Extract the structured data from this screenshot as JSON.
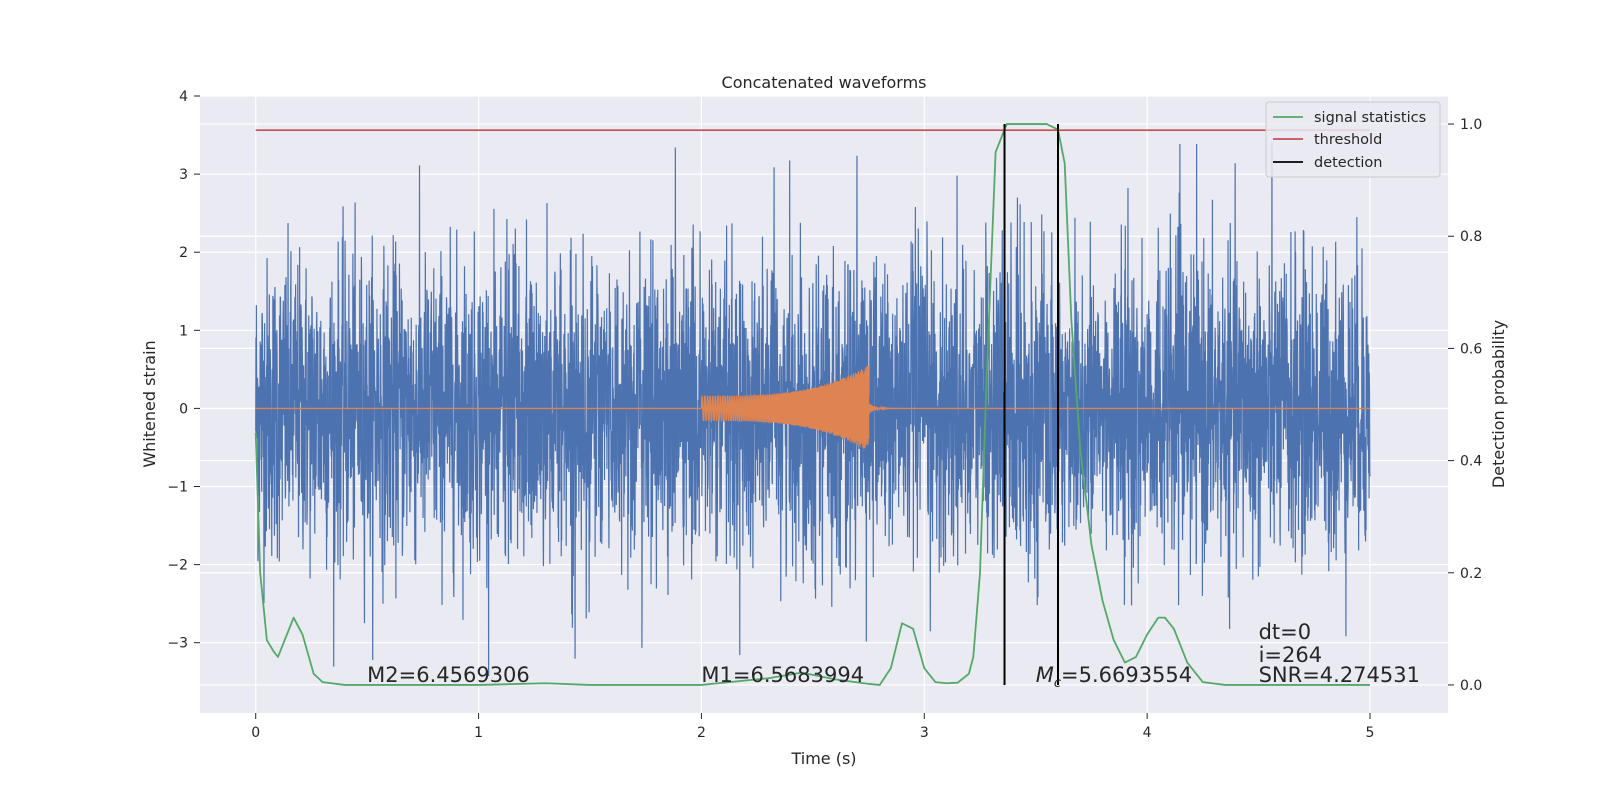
{
  "chart_data": {
    "type": "line",
    "title": "Concatenated waveforms",
    "xlabel": "Time (s)",
    "ylabel": "Whitened strain",
    "ylabel_right": "Detection probability",
    "xlim": [
      -0.25,
      5.35
    ],
    "ylim": [
      -3.9,
      4.0
    ],
    "ylim_right": [
      -0.05,
      1.05
    ],
    "xticks": [
      0,
      1,
      2,
      3,
      4,
      5
    ],
    "yticks": [
      -3,
      -2,
      -1,
      0,
      1,
      2,
      3,
      4
    ],
    "yticks_right": [
      0.0,
      0.2,
      0.4,
      0.6,
      0.8,
      1.0
    ],
    "ytick_labels": [
      "−3",
      "−2",
      "−1",
      "0",
      "1",
      "2",
      "3",
      "4"
    ],
    "yticks_right_labels": [
      "0.0",
      "0.2",
      "0.4",
      "0.6",
      "0.8",
      "1.0"
    ],
    "grid": true,
    "legend_position": "top-right",
    "legend": [
      "signal statistics",
      "threshold",
      "detection"
    ],
    "colors": {
      "noise": "#4c72b0",
      "signal": "#dd8452",
      "statistic": "#55a868",
      "threshold": "#c44e52",
      "detection": "#000000",
      "background": "#eaeaf2"
    },
    "series": [
      {
        "name": "whitened strain (noise)",
        "axis": "left",
        "x_range": [
          0,
          5
        ],
        "amplitude_band": [
          -3.55,
          3.6
        ]
      },
      {
        "name": "injected waveform",
        "axis": "left",
        "x_range": [
          2.0,
          2.75
        ],
        "peak_amplitude": 0.55
      },
      {
        "name": "signal statistics",
        "axis": "right",
        "x": [
          0,
          0.02,
          0.05,
          0.08,
          0.1,
          0.13,
          0.17,
          0.21,
          0.26,
          0.3,
          0.4,
          1.0,
          1.3,
          1.5,
          2.0,
          2.3,
          2.45,
          2.6,
          2.75,
          2.8,
          2.85,
          2.9,
          2.95,
          3.0,
          3.05,
          3.1,
          3.15,
          3.2,
          3.22,
          3.25,
          3.28,
          3.32,
          3.37,
          3.45,
          3.5,
          3.55,
          3.6,
          3.63,
          3.66,
          3.7,
          3.75,
          3.8,
          3.85,
          3.9,
          3.95,
          4.0,
          4.05,
          4.08,
          4.12,
          4.18,
          4.25,
          4.35,
          4.5,
          5.0
        ],
        "y": [
          0.45,
          0.2,
          0.08,
          0.06,
          0.05,
          0.08,
          0.12,
          0.09,
          0.02,
          0.005,
          0.0,
          0.0,
          0.003,
          0.0,
          0.0,
          0.012,
          0.022,
          0.01,
          0.002,
          0.0,
          0.03,
          0.11,
          0.1,
          0.03,
          0.005,
          0.003,
          0.004,
          0.02,
          0.05,
          0.2,
          0.55,
          0.95,
          1.0,
          1.0,
          1.0,
          1.0,
          0.99,
          0.93,
          0.65,
          0.42,
          0.25,
          0.15,
          0.08,
          0.04,
          0.05,
          0.09,
          0.12,
          0.12,
          0.1,
          0.04,
          0.005,
          0.0,
          0.0,
          0.0
        ]
      },
      {
        "name": "threshold",
        "axis": "right",
        "x": [
          0,
          5
        ],
        "y": [
          0.989,
          0.989
        ]
      },
      {
        "name": "detection",
        "axis": "right",
        "x": [
          3.36,
          3.36,
          3.6,
          3.6
        ],
        "y": [
          0.0,
          1.0,
          0.0,
          1.0
        ]
      }
    ],
    "annotations": [
      {
        "text": "M2=6.4569306",
        "x": 0.5,
        "y": -3.5
      },
      {
        "text": "M1=6.5683994",
        "x": 2.0,
        "y": -3.5
      },
      {
        "text": "=5.6693554",
        "symbol": "M",
        "sub": "c",
        "x": 3.5,
        "y": -3.5
      },
      {
        "text": "dt=0",
        "x": 4.5,
        "y": -2.95
      },
      {
        "text": "i=264",
        "x": 4.5,
        "y": -3.25
      },
      {
        "text": "SNR=4.274531",
        "x": 4.5,
        "y": -3.5
      }
    ]
  }
}
